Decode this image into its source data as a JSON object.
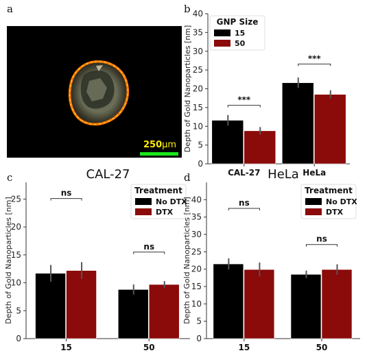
{
  "panels": {
    "a": "a",
    "b": "b",
    "c": "c",
    "d": "d"
  },
  "micrograph": {
    "scale_value": "250",
    "scale_unit": "µm",
    "scalebar_color": "#19e61a",
    "scale_text_color": "#ffec00"
  },
  "colors": {
    "black_series": "#000000",
    "red_series": "#8b0a0a",
    "errorbar": "#555555"
  },
  "chart_data": [
    {
      "id": "b",
      "type": "bar",
      "title": "",
      "xlabel": "",
      "ylabel": "Depth of Gold Nanoparticles [nm]",
      "ylim": [
        0,
        40
      ],
      "yticks": [
        0,
        5,
        10,
        15,
        20,
        25,
        30,
        35,
        40
      ],
      "categories": [
        "CAL-27",
        "HeLa"
      ],
      "legend": {
        "title": "GNP Size",
        "position": "top-left"
      },
      "series": [
        {
          "name": "15",
          "values": [
            11.6,
            21.6
          ],
          "errors": [
            1.4,
            1.4
          ]
        },
        {
          "name": "50",
          "values": [
            8.8,
            18.5
          ],
          "errors": [
            1.0,
            1.1
          ]
        }
      ],
      "annotations": [
        {
          "category": "CAL-27",
          "text": "***"
        },
        {
          "category": "HeLa",
          "text": "***"
        }
      ],
      "grid": false
    },
    {
      "id": "c",
      "type": "bar",
      "title": "CAL-27",
      "xlabel": "",
      "ylabel": "Depth of Gold Nanoparticles [nm]",
      "ylim": [
        0,
        28
      ],
      "yticks": [
        0,
        5,
        10,
        15,
        20,
        25
      ],
      "categories": [
        "15",
        "50"
      ],
      "legend": {
        "title": "Treatment",
        "position": "top-right"
      },
      "series": [
        {
          "name": "No DTX",
          "values": [
            11.7,
            8.8
          ],
          "errors": [
            1.5,
            0.9
          ]
        },
        {
          "name": "DTX",
          "values": [
            12.2,
            9.7
          ],
          "errors": [
            1.5,
            0.6
          ]
        }
      ],
      "annotations": [
        {
          "category": "15",
          "text": "ns"
        },
        {
          "category": "50",
          "text": "ns"
        }
      ],
      "grid": false
    },
    {
      "id": "d",
      "type": "bar",
      "title": "HeLa",
      "xlabel": "",
      "ylabel": "Depth of Gold Nanoparticles [nm]",
      "ylim": [
        0,
        45
      ],
      "yticks": [
        0,
        5,
        10,
        15,
        20,
        25,
        30,
        35,
        40
      ],
      "categories": [
        "15",
        "50"
      ],
      "legend": {
        "title": "Treatment",
        "position": "top-right"
      },
      "series": [
        {
          "name": "No DTX",
          "values": [
            21.5,
            18.5
          ],
          "errors": [
            1.6,
            1.1
          ]
        },
        {
          "name": "DTX",
          "values": [
            19.9,
            19.9
          ],
          "errors": [
            2.0,
            1.5
          ]
        }
      ],
      "annotations": [
        {
          "category": "15",
          "text": "ns"
        },
        {
          "category": "50",
          "text": "ns"
        }
      ],
      "grid": false
    }
  ]
}
